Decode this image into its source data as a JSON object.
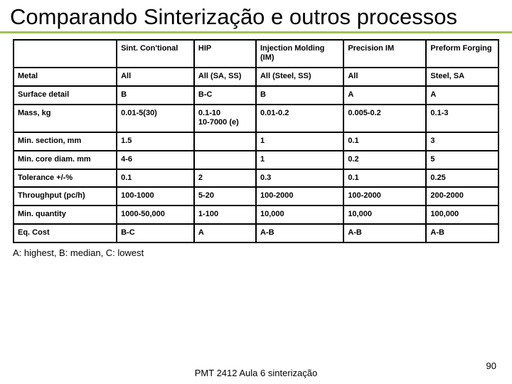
{
  "title": "Comparando Sinterização e outros processos",
  "title_underline_color": "#9fbf5a",
  "table": {
    "columns": [
      "",
      "Sint. Con'tional",
      "HIP",
      "Injection Molding (IM)",
      "Precision IM",
      "Preform Forging"
    ],
    "rows": [
      [
        "Metal",
        "All",
        "All (SA, SS)",
        "All (Steel, SS)",
        "All",
        "Steel, SA"
      ],
      [
        "Surface detail",
        "B",
        "B-C",
        "B",
        "A",
        "A"
      ],
      [
        "Mass, kg",
        "0.01-5(30)",
        "0.1-10\n10-7000 (e)",
        "0.01-0.2",
        "0.005-0.2",
        "0.1-3"
      ],
      [
        "Min. section, mm",
        "1.5",
        "",
        "1",
        "0.1",
        "3"
      ],
      [
        "Min. core diam. mm",
        "4-6",
        "",
        "1",
        "0.2",
        "5"
      ],
      [
        "Tolerance +/-%",
        "0.1",
        "2",
        "0.3",
        "0.1",
        "0.25"
      ],
      [
        "Throughput (pc/h)",
        "100-1000",
        "5-20",
        "100-2000",
        "100-2000",
        "200-2000"
      ],
      [
        "Min. quantity",
        "1000-50,000",
        "1-100",
        "10,000",
        "10,000",
        "100,000"
      ],
      [
        "Eq. Cost",
        "B-C",
        "A",
        "A-B",
        "A-B",
        "A-B"
      ]
    ]
  },
  "legend": "A: highest, B: median, C: lowest",
  "footer": "PMT 2412 Aula 6 sinterização",
  "page_number": "90"
}
